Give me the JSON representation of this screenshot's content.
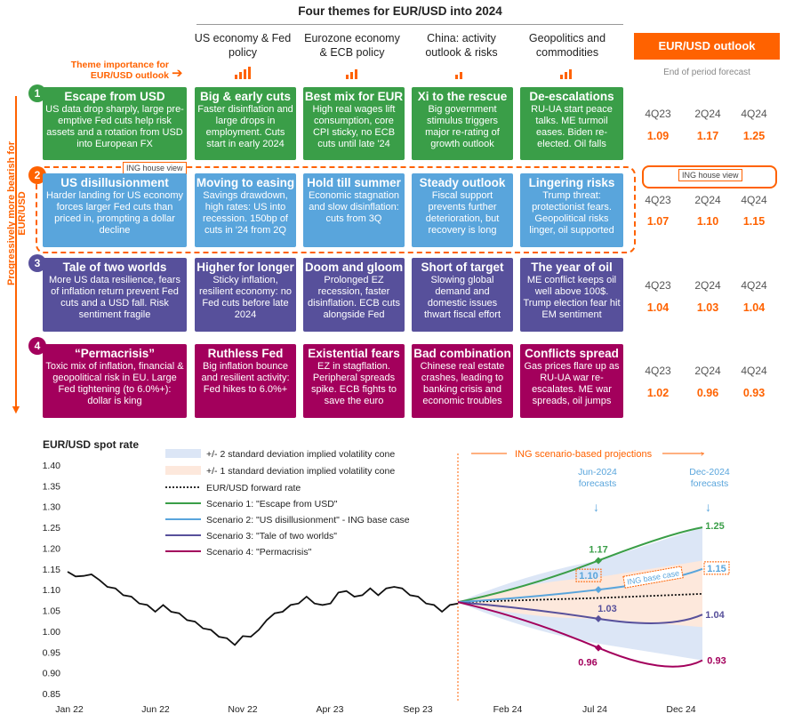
{
  "header": {
    "title": "Four themes for EUR/USD into 2024",
    "importance_label": "Theme importance for EUR/USD outlook",
    "outlook_title": "EUR/USD outlook",
    "outlook_subtitle": "End of period forecast",
    "side_label": "Progressively more bearish for EUR/USD",
    "house_view": "ING house view",
    "themes": [
      {
        "label": "US economy & Fed policy",
        "importance": 4
      },
      {
        "label": "Eurozone economy & ECB policy",
        "importance": 3
      },
      {
        "label": "China: activity outlook & risks",
        "importance": 2
      },
      {
        "label": "Geopolitics and commodities",
        "importance": 3
      }
    ],
    "colors": {
      "accent": "#ff6200",
      "s1": "#3a9e48",
      "s2": "#59a5dc",
      "s3": "#57509b",
      "s4": "#a3005c"
    }
  },
  "scenarios": [
    {
      "num": "1",
      "title": "Escape from USD",
      "desc": "US data drop sharply, large pre-emptive Fed cuts help risk assets and a rotation from USD into European FX",
      "cells": [
        {
          "title": "Big & early cuts",
          "desc": "Faster disinflation and large drops in employment. Cuts start in early 2024"
        },
        {
          "title": "Best mix for EUR",
          "desc": "High real wages lift consumption, core CPI sticky, no ECB cuts until late '24"
        },
        {
          "title": "Xi to the rescue",
          "desc": "Big government stimulus triggers major re-rating of growth outlook"
        },
        {
          "title": "De-escalations",
          "desc": "RU-UA start peace talks. ME turmoil eases. Biden re-elected. Oil falls"
        }
      ],
      "q": [
        "4Q23",
        "2Q24",
        "4Q24"
      ],
      "v": [
        "1.09",
        "1.17",
        "1.25"
      ]
    },
    {
      "num": "2",
      "title": "US disillusionment",
      "desc": "Harder landing for US economy forces larger Fed cuts than priced in, prompting a dollar decline",
      "cells": [
        {
          "title": "Moving to easing",
          "desc": "Savings drawdown, high rates: US into recession. 150bp of cuts in '24 from 2Q"
        },
        {
          "title": "Hold till summer",
          "desc": "Economic stagnation and slow disinflation: cuts from 3Q"
        },
        {
          "title": "Steady outlook",
          "desc": "Fiscal support prevents further deterioration, but recovery is long"
        },
        {
          "title": "Lingering risks",
          "desc": "Trump threat: protectionist fears. Geopolitical risks linger, oil supported"
        }
      ],
      "q": [
        "4Q23",
        "2Q24",
        "4Q24"
      ],
      "v": [
        "1.07",
        "1.10",
        "1.15"
      ]
    },
    {
      "num": "3",
      "title": "Tale of two worlds",
      "desc": "More US data resilience, fears of inflation return prevent Fed cuts and a USD fall. Risk sentiment fragile",
      "cells": [
        {
          "title": "Higher for longer",
          "desc": "Sticky inflation, resilient economy: no Fed cuts before late 2024"
        },
        {
          "title": "Doom and gloom",
          "desc": "Prolonged EZ recession, faster disinflation. ECB cuts alongside Fed"
        },
        {
          "title": "Short of target",
          "desc": "Slowing global demand and domestic issues thwart fiscal effort"
        },
        {
          "title": "The year of oil",
          "desc": "ME conflict keeps oil well above 100$. Trump election fear hit EM sentiment"
        }
      ],
      "q": [
        "4Q23",
        "2Q24",
        "4Q24"
      ],
      "v": [
        "1.04",
        "1.03",
        "1.04"
      ]
    },
    {
      "num": "4",
      "title": "“Permacrisis”",
      "desc": "Toxic mix of inflation, financial & geopolitical risk in EU. Large Fed tightening (to 6.0%+): dollar is king",
      "cells": [
        {
          "title": "Ruthless Fed",
          "desc": "Big inflation bounce and resilient activity: Fed hikes to 6.0%+"
        },
        {
          "title": "Existential fears",
          "desc": "EZ in stagflation. Peripheral spreads spike. ECB fights to save the euro"
        },
        {
          "title": "Bad combination",
          "desc": "Chinese real estate crashes, leading to banking crisis and economic troubles"
        },
        {
          "title": "Conflicts spread",
          "desc": "Gas prices flare up as RU-UA war re-escalates. ME war spreads, oil jumps"
        }
      ],
      "q": [
        "4Q23",
        "2Q24",
        "4Q24"
      ],
      "v": [
        "1.02",
        "0.96",
        "0.93"
      ]
    }
  ],
  "chart_data": {
    "type": "line",
    "title": "EUR/USD spot rate",
    "ylim": [
      0.85,
      1.4
    ],
    "yticks": [
      "1.40",
      "1.35",
      "1.30",
      "1.25",
      "1.20",
      "1.15",
      "1.10",
      "1.05",
      "1.00",
      "0.95",
      "0.90",
      "0.85"
    ],
    "xticks": [
      "Jan 22",
      "Jun 22",
      "Nov 22",
      "Apr 23",
      "Sep 23",
      "Feb 24",
      "Jul 24",
      "Dec 24"
    ],
    "projection_label": "ING scenario-based projections",
    "jun_label": "Jun-2024 forecasts",
    "dec_label": "Dec-2024 forecasts",
    "base_case_label": "ING base case",
    "legend": [
      "+/- 2 standard deviation implied volatility cone",
      "+/- 1 standard deviation implied volatility cone",
      "EUR/USD forward rate",
      "Scenario 1: \"Escape from USD\"",
      "Scenario 2: \"US disillusionment\" - ING base case",
      "Scenario 3: \"Tale of two worlds\"",
      "Scenario 4: \"Permacrisis\""
    ],
    "spot_history": [
      1.14,
      1.135,
      1.13,
      1.14,
      1.12,
      1.11,
      1.1,
      1.09,
      1.08,
      1.07,
      1.06,
      1.05,
      1.06,
      1.05,
      1.04,
      1.03,
      1.02,
      1.01,
      1.0,
      0.99,
      0.98,
      0.97,
      0.985,
      0.99,
      1.0,
      1.03,
      1.04,
      1.05,
      1.06,
      1.07,
      1.08,
      1.07,
      1.06,
      1.07,
      1.09,
      1.1,
      1.08,
      1.09,
      1.1,
      1.09,
      1.1,
      1.11,
      1.1,
      1.09,
      1.08,
      1.07,
      1.06,
      1.05,
      1.06,
      1.07
    ],
    "forward": [
      1.07,
      1.08,
      1.09
    ],
    "s1": {
      "jun": 1.17,
      "dec": 1.25
    },
    "s2": {
      "jun": 1.1,
      "dec": 1.15
    },
    "s3": {
      "jun": 1.03,
      "dec": 1.04
    },
    "s4": {
      "jun": 0.96,
      "dec": 0.93
    },
    "labels": {
      "s1j": "1.17",
      "s1d": "1.25",
      "s2j": "1.10",
      "s2d": "1.15",
      "s3j": "1.03",
      "s3d": "1.04",
      "s4j": "0.96",
      "s4d": "0.93"
    }
  }
}
